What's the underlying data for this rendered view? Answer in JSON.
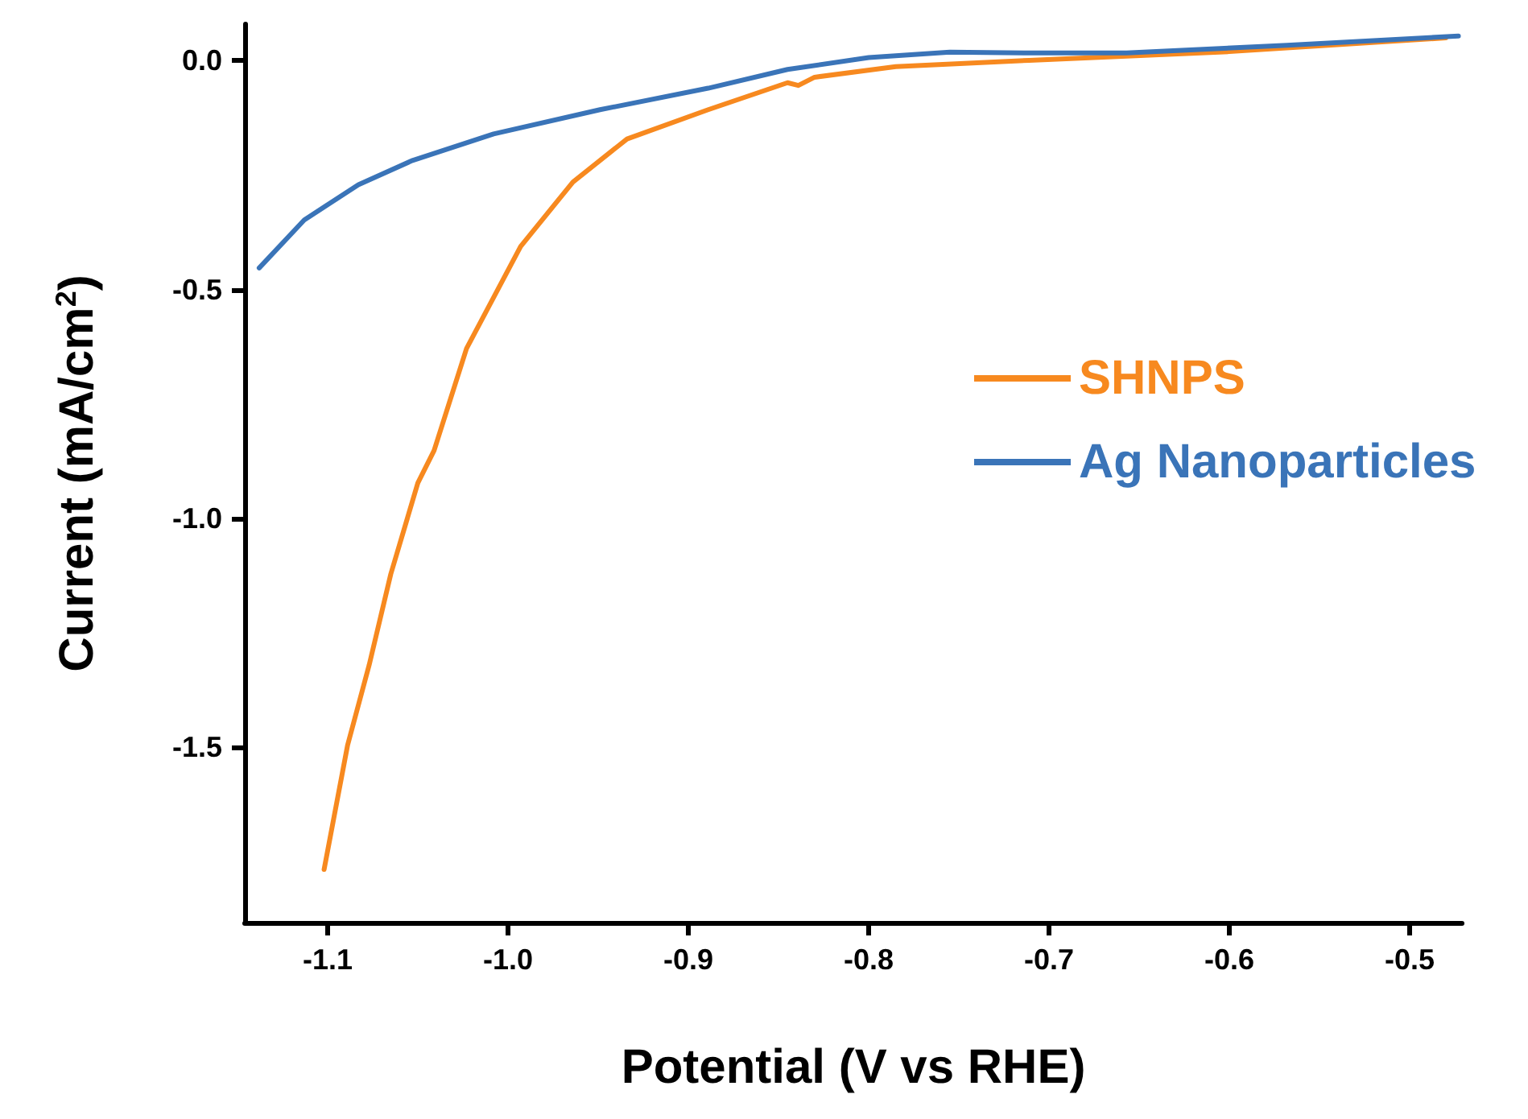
{
  "chart_data": {
    "type": "line",
    "xlabel": "Potential (V vs RHE)",
    "ylabel": "Current (mA/cm$^{2}$)",
    "xlim": [
      -1.146,
      -0.471
    ],
    "ylim": [
      -1.884,
      0.08
    ],
    "xticks": [
      -1.1,
      {
        "value": -1,
        "label": "-1.0"
      },
      -0.9,
      -0.8,
      -0.7,
      -0.6,
      -0.5
    ],
    "yticks": [
      {
        "value": 0,
        "label": "0.0"
      },
      -0.5,
      {
        "value": -1,
        "label": "-1.0"
      },
      -1.5
    ],
    "grid": false,
    "legend": "right",
    "marker": "none",
    "line_style": "solid",
    "series": [
      {
        "name": "SHNPS",
        "color": "#f7891f",
        "x": [
          -1.102,
          -1.089,
          -1.077,
          -1.065,
          -1.05,
          -1.041,
          -1.023,
          -0.993,
          -0.964,
          -0.934,
          -0.889,
          -0.845,
          -0.839,
          -0.83,
          -0.785,
          -0.711,
          -0.6,
          -0.48
        ],
        "values": [
          -1.768,
          -1.497,
          -1.321,
          -1.122,
          -0.923,
          -0.852,
          -0.629,
          -0.406,
          -0.265,
          -0.171,
          -0.107,
          -0.048,
          -0.054,
          -0.036,
          -0.013,
          0.001,
          0.02,
          0.05
        ]
      },
      {
        "name": "Ag Nanoparticles",
        "color": "#3a74b8",
        "x": [
          -1.138,
          -1.113,
          -1.083,
          -1.053,
          -1.008,
          -0.949,
          -0.889,
          -0.845,
          -0.8,
          -0.755,
          -0.711,
          -0.657,
          -0.568,
          -0.473
        ],
        "values": [
          -0.453,
          -0.348,
          -0.271,
          -0.218,
          -0.16,
          -0.107,
          -0.06,
          -0.019,
          0.007,
          0.019,
          0.017,
          0.017,
          0.034,
          0.054
        ]
      }
    ]
  }
}
